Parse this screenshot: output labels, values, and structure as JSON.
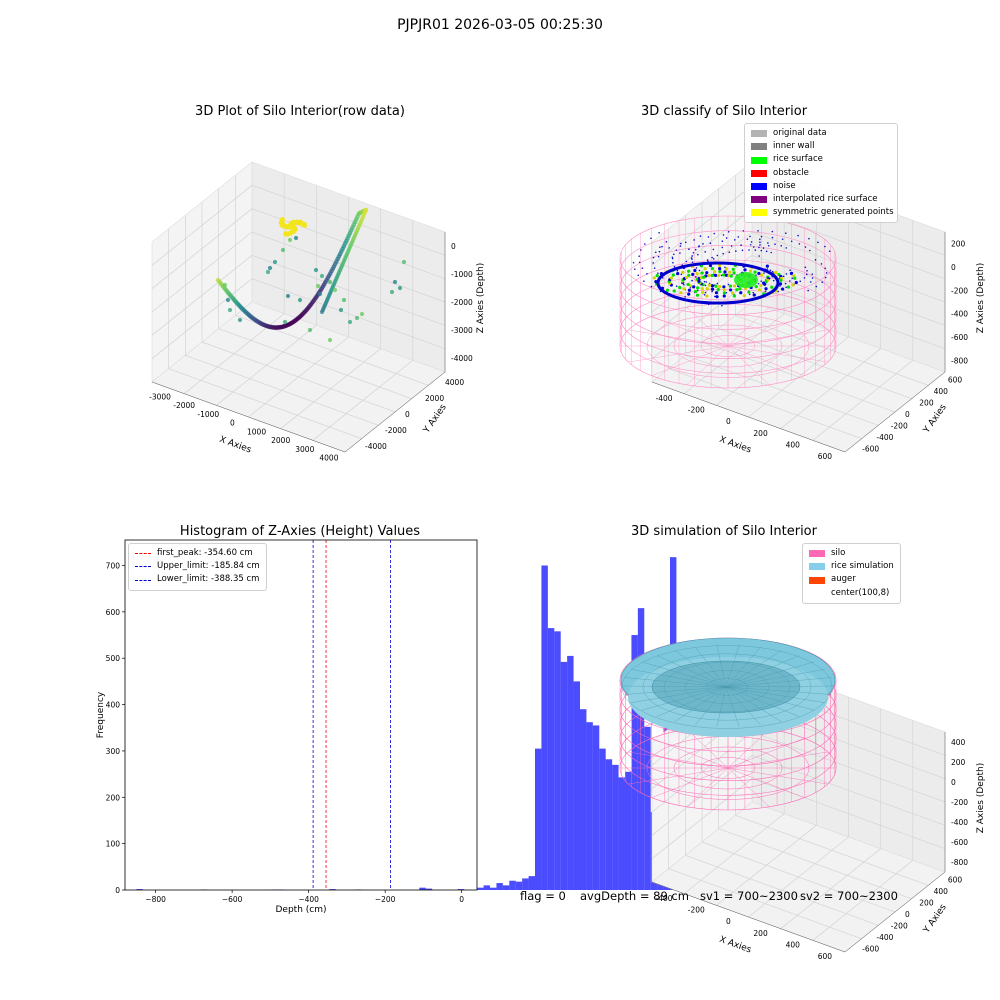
{
  "suptitle": "PJPJR01 2026-03-05 00:25:30",
  "panels": {
    "tl": {
      "title": "3D Plot of Silo Interior(row data)"
    },
    "tr": {
      "title": "3D classify of Silo Interior"
    },
    "bl": {
      "title": "Histogram of Z-Axies (Height) Values"
    },
    "br": {
      "title": "3D simulation of Silo Interior"
    }
  },
  "legend_tr": [
    {
      "label": "original data",
      "color": "#b3b3b3"
    },
    {
      "label": "inner wall",
      "color": "#808080"
    },
    {
      "label": "rice surface",
      "color": "#00ff00"
    },
    {
      "label": "obstacle",
      "color": "#ff0000"
    },
    {
      "label": "noise",
      "color": "#0000ff"
    },
    {
      "label": "interpolated rice surface",
      "color": "#800080"
    },
    {
      "label": "symmetric generated points",
      "color": "#ffff00"
    }
  ],
  "legend_bl": [
    {
      "label": "first_peak: -354.60 cm",
      "color": "#ff0000"
    },
    {
      "label": "Upper_limit: -185.84 cm",
      "color": "#0000cc"
    },
    {
      "label": "Lower_limit: -388.35 cm",
      "color": "#0000cc"
    }
  ],
  "legend_br": [
    {
      "label": "silo",
      "color": "#ff69b4"
    },
    {
      "label": "rice simulation",
      "color": "#87ceeb"
    },
    {
      "label": "auger",
      "color": "#ff4500"
    },
    {
      "label": "center(100,8)",
      "color": ""
    }
  ],
  "status": {
    "flag": "flag = 0",
    "avg": "avgDepth = 89 cm",
    "sv1": "sv1 = 700~2300",
    "sv2": "sv2 = 700~2300"
  },
  "axes3d": {
    "tl": {
      "xlabel": "X Axies",
      "ylabel": "Y Axies",
      "zlabel": "Z Axies (Depth)",
      "xticks": [
        "-3000",
        "-2000",
        "-1000",
        "0",
        "1000",
        "2000",
        "3000",
        "4000"
      ],
      "yticks": [
        "-4000",
        "-2000",
        "0",
        "2000",
        "4000"
      ],
      "zticks": [
        "0",
        "-1000",
        "-2000",
        "-3000",
        "-4000"
      ]
    },
    "tr": {
      "xlabel": "X Axies",
      "ylabel": "Y Axies",
      "zlabel": "Z Axies (Depth)",
      "xticks": [
        "-400",
        "-200",
        "0",
        "200",
        "400",
        "600"
      ],
      "yticks": [
        "-600",
        "-400",
        "-200",
        "0",
        "200",
        "400",
        "600"
      ],
      "zticks": [
        "200",
        "0",
        "-200",
        "-400",
        "-600",
        "-800"
      ]
    },
    "br": {
      "xlabel": "X Axies",
      "ylabel": "Y Axies",
      "zlabel": "Z Axies (Depth)",
      "xticks": [
        "-400",
        "-200",
        "0",
        "200",
        "400",
        "600"
      ],
      "yticks": [
        "-600",
        "-400",
        "-200",
        "0",
        "200",
        "400",
        "600"
      ],
      "zticks": [
        "400",
        "200",
        "0",
        "-200",
        "-400",
        "-600",
        "-800"
      ]
    }
  },
  "chart_data": {
    "type": "bar",
    "title": "Histogram of Z-Axies (Height) Values",
    "xlabel": "Depth (cm)",
    "ylabel": "Frequency",
    "xlim": [
      -880,
      40
    ],
    "ylim": [
      0,
      755
    ],
    "xticks": [
      -800,
      -600,
      -400,
      -200,
      0
    ],
    "yticks": [
      0,
      100,
      200,
      300,
      400,
      500,
      600,
      700
    ],
    "bin_width": 16.8,
    "bin_start": -850,
    "values": [
      2,
      0,
      0,
      0,
      0,
      0,
      0,
      0,
      0,
      0,
      1,
      0,
      0,
      0,
      0,
      0,
      0,
      0,
      0,
      0,
      0,
      1,
      1,
      0,
      0,
      0,
      0,
      0,
      0,
      0,
      2,
      0,
      0,
      0,
      1,
      0,
      0,
      0,
      0,
      0,
      0,
      0,
      0,
      0,
      5,
      3,
      0,
      0,
      0,
      0,
      2,
      0,
      0,
      5,
      10,
      5,
      15,
      10,
      20,
      18,
      25,
      30,
      305,
      700,
      565,
      558,
      492,
      505,
      450,
      390,
      362,
      355,
      305,
      282,
      270,
      243,
      255,
      550,
      608,
      352,
      168,
      143,
      388,
      718
    ],
    "bar_color": "#0000ff",
    "vlines": [
      {
        "name": "first_peak",
        "value": -354.6,
        "color": "#ff0000"
      },
      {
        "name": "Upper_limit",
        "value": -185.84,
        "color": "#0000cc"
      },
      {
        "name": "Lower_limit",
        "value": -388.35,
        "color": "#0000cc"
      }
    ]
  }
}
